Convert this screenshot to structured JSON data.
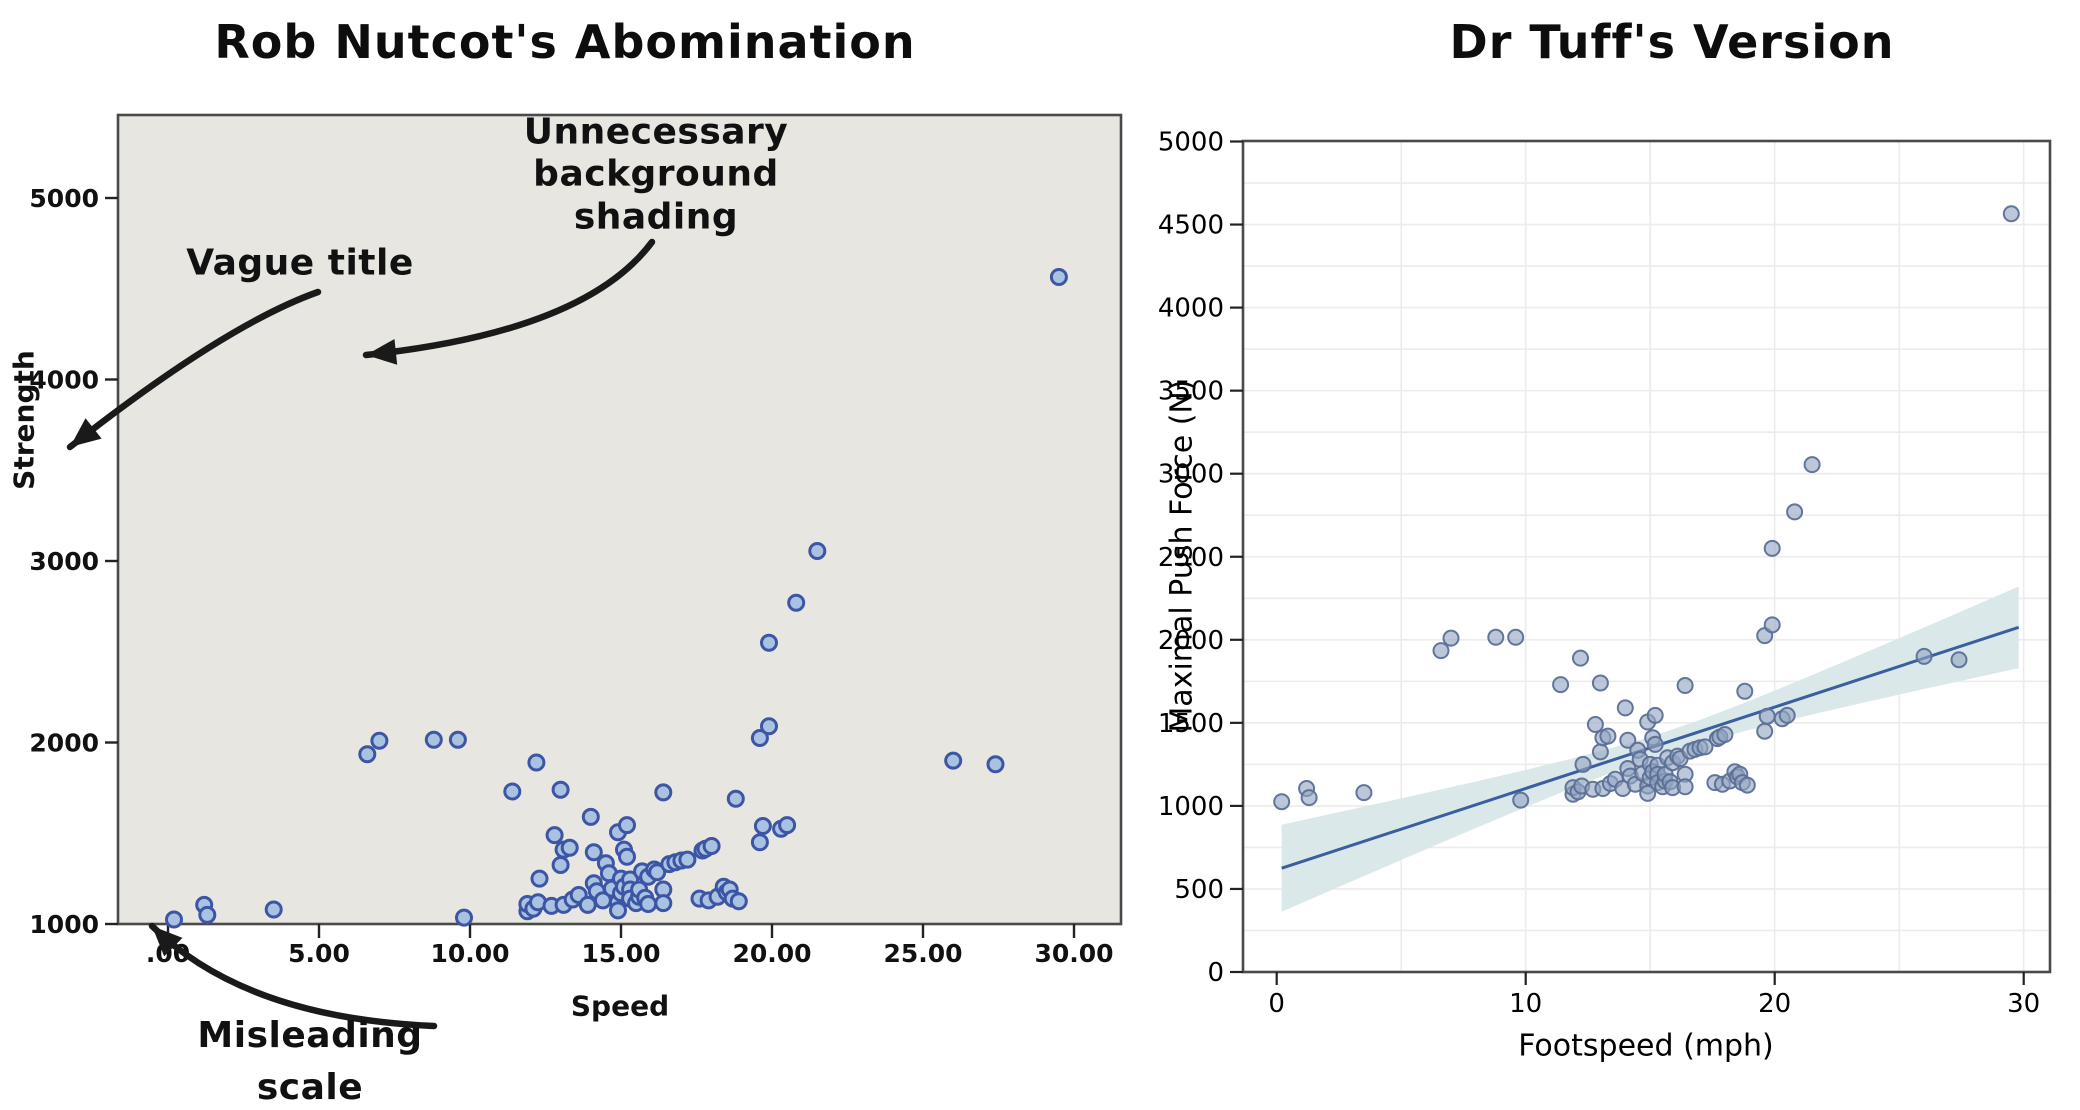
{
  "left_chart": {
    "title": "Rob Nutcot's Abomination",
    "xlabel": "Speed",
    "ylabel": "Strength",
    "x_tick_labels": [
      ".00",
      "5.00",
      "10.00",
      "15.00",
      "20.00",
      "25.00",
      "30.00"
    ],
    "x_tick_values": [
      0,
      5,
      10,
      15,
      20,
      25,
      30
    ],
    "y_tick_labels": [
      "1000",
      "2000",
      "3000",
      "4000",
      "5000"
    ],
    "y_tick_values": [
      1000,
      2000,
      3000,
      4000,
      5000
    ],
    "annotations": {
      "vague_title": "Vague title",
      "bg_shading": "Unnecessary\nbackground\nshading",
      "misleading_scale": "Misleading\nscale"
    }
  },
  "right_chart": {
    "title": "Dr Tuff's Version",
    "xlabel": "Footspeed (mph)",
    "ylabel": "Maximal Push Force (N)",
    "x_tick_labels": [
      "0",
      "10",
      "20",
      "30"
    ],
    "x_tick_values": [
      0,
      10,
      20,
      30
    ],
    "y_tick_labels": [
      "0",
      "500",
      "1000",
      "1500",
      "2000",
      "2500",
      "3000",
      "3500",
      "4000",
      "4500",
      "5000"
    ],
    "y_tick_values": [
      0,
      500,
      1000,
      1500,
      2000,
      2500,
      3000,
      3500,
      4000,
      4500,
      5000
    ]
  },
  "colors": {
    "left_bg": "#e7e6e1",
    "left_point_fill": "#a9c2e1",
    "left_point_stroke": "#3c55a5",
    "right_point_fill": "#93a6c2",
    "right_point_stroke": "#5c6f96",
    "trend_line": "#3b5e9e",
    "band_fill": "#dbe8ea",
    "grid": "#ececec",
    "spine": "#4a4a4a",
    "arrow": "#1a1a1a"
  },
  "chart_data": {
    "type": "scatter",
    "description": "Same dataset shown in both panels: footspeed (mph) vs maximal push force (N)",
    "points": [
      [
        0.2,
        1025
      ],
      [
        1.2,
        1105
      ],
      [
        1.3,
        1050
      ],
      [
        3.5,
        1080
      ],
      [
        9.8,
        1035
      ],
      [
        6.6,
        1935
      ],
      [
        7.0,
        2010
      ],
      [
        8.8,
        2015
      ],
      [
        9.6,
        2015
      ],
      [
        12.2,
        1890
      ],
      [
        11.4,
        1730
      ],
      [
        13.0,
        1740
      ],
      [
        16.4,
        1725
      ],
      [
        18.8,
        1690
      ],
      [
        12.3,
        1250
      ],
      [
        12.8,
        1490
      ],
      [
        13.0,
        1325
      ],
      [
        13.1,
        1410
      ],
      [
        13.3,
        1420
      ],
      [
        14.0,
        1590
      ],
      [
        14.1,
        1395
      ],
      [
        14.9,
        1505
      ],
      [
        15.1,
        1410
      ],
      [
        15.2,
        1370
      ],
      [
        15.2,
        1545
      ],
      [
        11.9,
        1070
      ],
      [
        11.9,
        1110
      ],
      [
        12.1,
        1085
      ],
      [
        12.25,
        1120
      ],
      [
        12.7,
        1100
      ],
      [
        13.1,
        1105
      ],
      [
        13.4,
        1135
      ],
      [
        13.6,
        1160
      ],
      [
        13.9,
        1105
      ],
      [
        14.1,
        1225
      ],
      [
        14.2,
        1180
      ],
      [
        14.4,
        1130
      ],
      [
        14.5,
        1335
      ],
      [
        14.6,
        1280
      ],
      [
        14.7,
        1195
      ],
      [
        14.9,
        1120
      ],
      [
        14.9,
        1075
      ],
      [
        15.0,
        1170
      ],
      [
        15.0,
        1250
      ],
      [
        15.1,
        1205
      ],
      [
        15.3,
        1245
      ],
      [
        15.3,
        1190
      ],
      [
        15.3,
        1140
      ],
      [
        15.5,
        1115
      ],
      [
        15.6,
        1150
      ],
      [
        15.6,
        1190
      ],
      [
        15.7,
        1290
      ],
      [
        15.8,
        1145
      ],
      [
        15.9,
        1110
      ],
      [
        15.9,
        1260
      ],
      [
        16.1,
        1300
      ],
      [
        16.2,
        1285
      ],
      [
        16.4,
        1190
      ],
      [
        16.4,
        1115
      ],
      [
        17.6,
        1140
      ],
      [
        17.9,
        1130
      ],
      [
        18.2,
        1150
      ],
      [
        18.4,
        1205
      ],
      [
        18.5,
        1175
      ],
      [
        18.6,
        1190
      ],
      [
        18.7,
        1140
      ],
      [
        18.9,
        1125
      ],
      [
        16.6,
        1330
      ],
      [
        16.8,
        1340
      ],
      [
        17.0,
        1350
      ],
      [
        17.2,
        1355
      ],
      [
        17.7,
        1405
      ],
      [
        17.8,
        1415
      ],
      [
        18.0,
        1430
      ],
      [
        19.6,
        1450
      ],
      [
        19.7,
        1540
      ],
      [
        20.3,
        1525
      ],
      [
        20.5,
        1545
      ],
      [
        19.6,
        2025
      ],
      [
        19.9,
        2090
      ],
      [
        19.9,
        2550
      ],
      [
        20.8,
        2770
      ],
      [
        21.5,
        3055
      ],
      [
        26.0,
        1900
      ],
      [
        27.4,
        1880
      ],
      [
        29.5,
        4565
      ]
    ],
    "charts": [
      {
        "panel": "left",
        "title": "Rob Nutcot's Abomination",
        "xlabel": "Speed",
        "ylabel": "Strength",
        "xlim": [
          -1.66,
          31.6
        ],
        "ylim": [
          1000,
          5465
        ],
        "grid": false,
        "background_shaded": true,
        "flaws_annotated": [
          "Vague title",
          "Unnecessary background shading",
          "Misleading scale"
        ]
      },
      {
        "panel": "right",
        "title": "Dr Tuff's Version",
        "xlabel": "Footspeed (mph)",
        "ylabel": "Maximal Push Force (N)",
        "xlim": [
          -1.35,
          31.1
        ],
        "ylim": [
          0,
          5000
        ],
        "grid": true,
        "x_minor_step": 5,
        "y_minor_step": 250,
        "trend": {
          "intercept": 615,
          "slope": 49,
          "x_start": 0.2,
          "x_end": 29.8
        },
        "band": [
          [
            0.2,
            363,
            887
          ],
          [
            2,
            480,
            946
          ],
          [
            4,
            610,
            1012
          ],
          [
            6,
            739,
            1079
          ],
          [
            8,
            867,
            1147
          ],
          [
            10,
            993,
            1217
          ],
          [
            12,
            1116,
            1290
          ],
          [
            14,
            1231,
            1371
          ],
          [
            15.5,
            1310,
            1440
          ],
          [
            17,
            1378,
            1518
          ],
          [
            19,
            1459,
            1633
          ],
          [
            21,
            1532,
            1756
          ],
          [
            23,
            1602,
            1882
          ],
          [
            25,
            1670,
            2010
          ],
          [
            27,
            1737,
            2139
          ],
          [
            29,
            1803,
            2269
          ],
          [
            29.8,
            1829,
            2321
          ]
        ]
      }
    ]
  }
}
